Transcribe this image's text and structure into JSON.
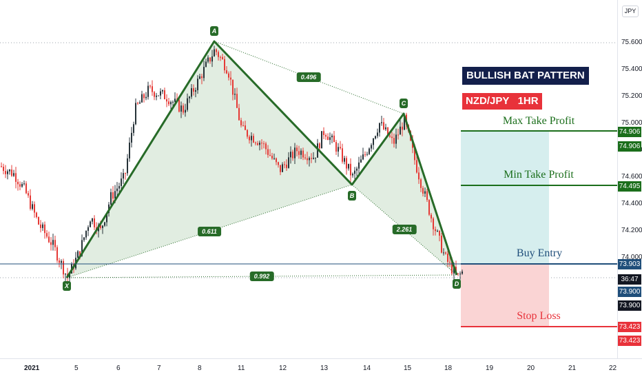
{
  "currency_label": "JPY",
  "title": "BULLISH BAT PATTERN",
  "pair_label": "NZD/JPY   1HR",
  "levels": {
    "max_take_profit": {
      "label": "Max Take Profit",
      "price": "74.906"
    },
    "min_take_profit": {
      "label": "Min Take Profit",
      "price": "74.495"
    },
    "buy_entry": {
      "label": "Buy Entry",
      "price": "73.903"
    },
    "stop_loss": {
      "label": "Stop Loss",
      "price": "73.423"
    }
  },
  "countdown": "36:47",
  "extra_price_tags": [
    "74.906",
    "73.900",
    "73.900",
    "73.423"
  ],
  "pattern_points": [
    "X",
    "A",
    "B",
    "C",
    "D"
  ],
  "ratios": {
    "xb": "0.611",
    "ac": "0.496",
    "bd": "2.261",
    "xd": "0.992"
  },
  "colors": {
    "pattern_line": "#276b28",
    "pattern_fill": "#c8dfc8",
    "profit_zone": "#d6eeee",
    "loss_zone": "#fad4d4",
    "max_tp_line": "#1b6e1b",
    "min_tp_line": "#1b6e1b",
    "buy_line": "#1f4e7a",
    "stop_line": "#e8323a",
    "bull_candle": "#263238",
    "bear_candle": "#e53935",
    "title_bg": "#131f4b",
    "pair_bg": "#e8323a"
  },
  "chart_data": {
    "type": "candlestick",
    "y_ticks": [
      "75.600",
      "75.400",
      "75.200",
      "75.000",
      "74.800",
      "74.600",
      "74.400",
      "74.200",
      "74.000"
    ],
    "x_ticks": [
      "2021",
      "5",
      "6",
      "7",
      "8",
      "11",
      "12",
      "13",
      "14",
      "15",
      "18",
      "19",
      "20",
      "21",
      "22"
    ],
    "y_range": [
      73.2,
      75.78
    ],
    "harmonic_points": {
      "X": {
        "date": "5",
        "price": 73.81
      },
      "A": {
        "date": "8",
        "price": 75.6
      },
      "B": {
        "date": "13-14",
        "price": 74.53
      },
      "C": {
        "date": "15",
        "price": 75.06
      },
      "D": {
        "date": "18",
        "price": 73.83
      }
    }
  }
}
